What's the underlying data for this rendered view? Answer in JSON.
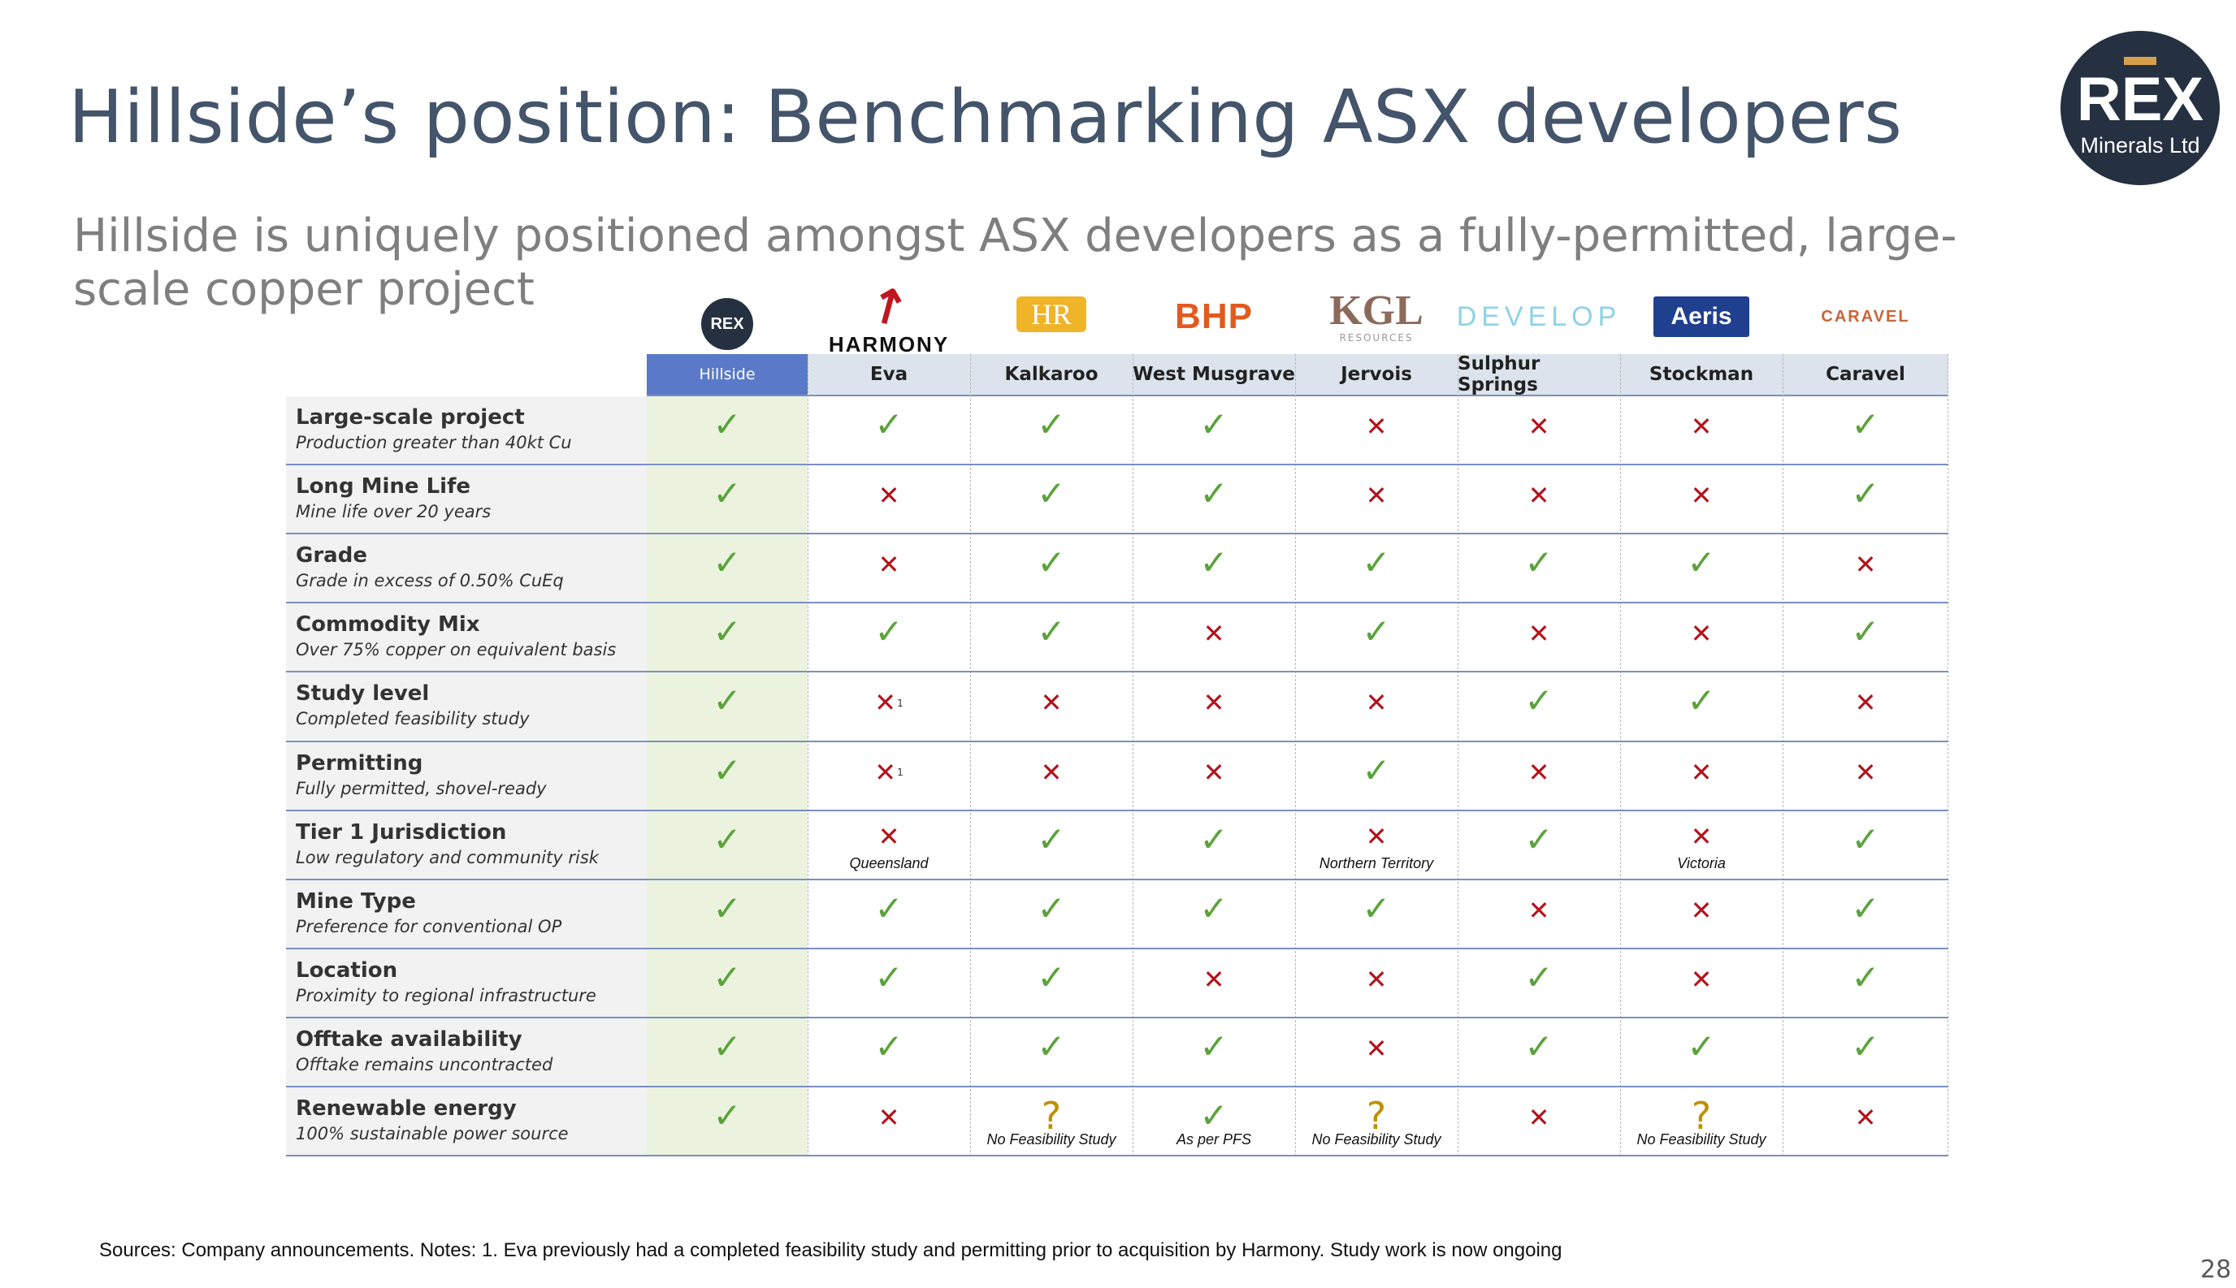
{
  "title": "Hillside’s position: Benchmarking ASX developers",
  "subtitle": "Hillside is uniquely positioned amongst ASX developers as a fully-permitted, large-scale copper project",
  "brand": {
    "line1": "REX",
    "line2": "Minerals Ltd"
  },
  "logos": {
    "rex": "REX",
    "harmony": "HARMONY",
    "hr": "HR",
    "bhp": "BHP",
    "kgl": "KGL",
    "kgl_sub": "RESOURCES",
    "develop": "DEVELOP",
    "aeris": "Aeris",
    "caravel": "CARAVEL"
  },
  "columns": [
    "Hillside",
    "Eva",
    "Kalkaroo",
    "West Musgrave",
    "Jervois",
    "Sulphur Springs",
    "Stockman",
    "Caravel"
  ],
  "rows": [
    {
      "title": "Large-scale project",
      "subtitle": "Production greater than 40kt Cu",
      "marks": [
        "yes",
        "yes",
        "yes",
        "yes",
        "no",
        "no",
        "no",
        "yes"
      ],
      "sups": [
        "",
        "",
        "",
        "",
        "",
        "",
        "",
        ""
      ],
      "notes": [
        "",
        "",
        "",
        "",
        "",
        "",
        "",
        ""
      ]
    },
    {
      "title": "Long Mine Life",
      "subtitle": "Mine life over 20 years",
      "marks": [
        "yes",
        "no",
        "yes",
        "yes",
        "no",
        "no",
        "no",
        "yes"
      ],
      "sups": [
        "",
        "",
        "",
        "",
        "",
        "",
        "",
        ""
      ],
      "notes": [
        "",
        "",
        "",
        "",
        "",
        "",
        "",
        ""
      ]
    },
    {
      "title": "Grade",
      "subtitle": "Grade in excess of 0.50% CuEq",
      "marks": [
        "yes",
        "no",
        "yes",
        "yes",
        "yes",
        "yes",
        "yes",
        "no"
      ],
      "sups": [
        "",
        "",
        "",
        "",
        "",
        "",
        "",
        ""
      ],
      "notes": [
        "",
        "",
        "",
        "",
        "",
        "",
        "",
        ""
      ]
    },
    {
      "title": "Commodity Mix",
      "subtitle": "Over 75% copper on equivalent basis",
      "marks": [
        "yes",
        "yes",
        "yes",
        "no",
        "yes",
        "no",
        "no",
        "yes"
      ],
      "sups": [
        "",
        "",
        "",
        "",
        "",
        "",
        "",
        ""
      ],
      "notes": [
        "",
        "",
        "",
        "",
        "",
        "",
        "",
        ""
      ]
    },
    {
      "title": "Study level",
      "subtitle": "Completed feasibility study",
      "marks": [
        "yes",
        "no",
        "no",
        "no",
        "no",
        "yes",
        "yes",
        "no"
      ],
      "sups": [
        "",
        "1",
        "",
        "",
        "",
        "",
        "",
        ""
      ],
      "notes": [
        "",
        "",
        "",
        "",
        "",
        "",
        "",
        ""
      ]
    },
    {
      "title": "Permitting",
      "subtitle": "Fully permitted, shovel-ready",
      "marks": [
        "yes",
        "no",
        "no",
        "no",
        "yes",
        "no",
        "no",
        "no"
      ],
      "sups": [
        "",
        "1",
        "",
        "",
        "",
        "",
        "",
        ""
      ],
      "notes": [
        "",
        "",
        "",
        "",
        "",
        "",
        "",
        ""
      ]
    },
    {
      "title": "Tier 1 Jurisdiction",
      "subtitle": "Low regulatory and community risk",
      "marks": [
        "yes",
        "no",
        "yes",
        "yes",
        "no",
        "yes",
        "no",
        "yes"
      ],
      "sups": [
        "",
        "",
        "",
        "",
        "",
        "",
        "",
        ""
      ],
      "notes": [
        "",
        "Queensland",
        "",
        "",
        "Northern Territory",
        "",
        "Victoria",
        ""
      ]
    },
    {
      "title": "Mine Type",
      "subtitle": "Preference for conventional OP",
      "marks": [
        "yes",
        "yes",
        "yes",
        "yes",
        "yes",
        "no",
        "no",
        "yes"
      ],
      "sups": [
        "",
        "",
        "",
        "",
        "",
        "",
        "",
        ""
      ],
      "notes": [
        "",
        "",
        "",
        "",
        "",
        "",
        "",
        ""
      ]
    },
    {
      "title": "Location",
      "subtitle": "Proximity to regional infrastructure",
      "marks": [
        "yes",
        "yes",
        "yes",
        "no",
        "no",
        "yes",
        "no",
        "yes"
      ],
      "sups": [
        "",
        "",
        "",
        "",
        "",
        "",
        "",
        ""
      ],
      "notes": [
        "",
        "",
        "",
        "",
        "",
        "",
        "",
        ""
      ]
    },
    {
      "title": "Offtake availability",
      "subtitle": "Offtake remains uncontracted",
      "marks": [
        "yes",
        "yes",
        "yes",
        "yes",
        "no",
        "yes",
        "yes",
        "yes"
      ],
      "sups": [
        "",
        "",
        "",
        "",
        "",
        "",
        "",
        ""
      ],
      "notes": [
        "",
        "",
        "",
        "",
        "",
        "",
        "",
        ""
      ]
    },
    {
      "title": "Renewable energy",
      "subtitle": "100% sustainable power source",
      "marks": [
        "yes",
        "no",
        "q",
        "yes",
        "q",
        "no",
        "q",
        "no"
      ],
      "sups": [
        "",
        "",
        "",
        "",
        "",
        "",
        "",
        ""
      ],
      "notes": [
        "",
        "",
        "No Feasibility Study",
        "As per PFS",
        "No Feasibility Study",
        "",
        "No Feasibility Study",
        ""
      ]
    }
  ],
  "footer": "Sources: Company announcements. Notes: 1. Eva previously had a completed feasibility study and permitting prior to acquisition by Harmony. Study work is now ongoing",
  "page_number": "28"
}
